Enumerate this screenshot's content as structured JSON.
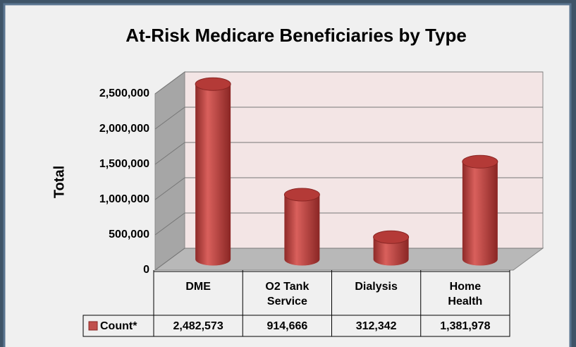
{
  "chart_data": {
    "type": "bar3d",
    "title": "At-Risk Medicare Beneficiaries by Type",
    "y_label": "Total",
    "categories": [
      "DME",
      "O2 Tank Service",
      "Dialysis",
      "Home Health"
    ],
    "series": [
      {
        "name": "Count*",
        "color": "#c0504d",
        "values": [
          2482573,
          914666,
          312342,
          1381978
        ],
        "value_labels": [
          "2,482,573",
          "914,666",
          "312,342",
          "1,381,978"
        ]
      }
    ],
    "ylim": [
      0,
      2500000
    ],
    "yticks": [
      0,
      {
        "value": 500000,
        "label": "500,000"
      },
      {
        "value": 1000000,
        "label": "1,000,000"
      },
      {
        "value": 1500000,
        "label": "1,500,000"
      },
      {
        "value": 2000000,
        "label": "2,000,000"
      },
      {
        "value": 2500000,
        "label": "2,500,000"
      }
    ],
    "grid": true
  }
}
